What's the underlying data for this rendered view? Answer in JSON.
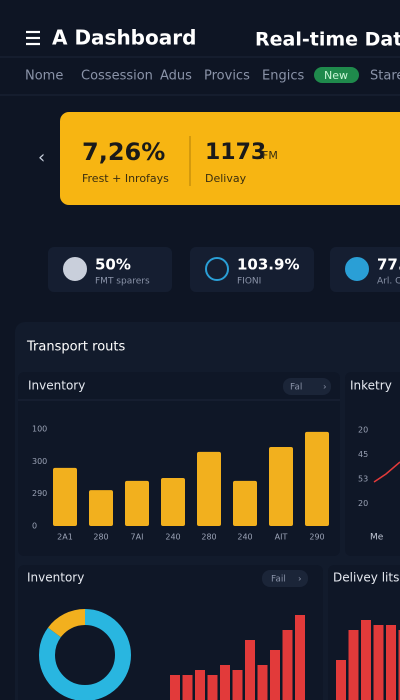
{
  "header": {
    "title": "A Dashboard",
    "right_title": "Real-time Data"
  },
  "nav": {
    "items": [
      "Nome",
      "Cossession",
      "Adus",
      "Provics",
      "Engics",
      "New",
      "Stare"
    ]
  },
  "hero": {
    "metric1": {
      "value": "7,26%",
      "label": "Frest + Inrofays"
    },
    "metric2": {
      "value": "1173",
      "unit": "FM",
      "label": "Delivay"
    }
  },
  "stats": [
    {
      "value": "50%",
      "label": "FMT sparers"
    },
    {
      "value": "103.9%",
      "label": "FIONI"
    },
    {
      "value": "77.",
      "label": "Arl. C"
    }
  ],
  "section": {
    "title": "Transport routs"
  },
  "bar_panel": {
    "title": "Inventory",
    "button": "Fal",
    "y_labels": [
      "100",
      "300",
      "290",
      "0"
    ],
    "ylim": [
      0,
      300
    ],
    "categories": [
      "2A1",
      "280",
      "7AI",
      "240",
      "280",
      "240",
      "AIT",
      "290"
    ],
    "values": [
      178,
      110,
      138,
      147,
      227,
      138,
      242,
      288
    ],
    "color": "#f2b01e"
  },
  "line_panel": {
    "title": "Inketry",
    "y_labels": [
      "20",
      "45",
      "53",
      "20"
    ],
    "x_label": "Me"
  },
  "donut_panel": {
    "title": "Inventory",
    "button": "Fail",
    "values": [
      85,
      15
    ],
    "colors": [
      "#29b6e0",
      "#f2b01e"
    ],
    "bar_values": [
      25,
      25,
      30,
      25,
      35,
      30,
      60,
      35,
      50,
      70,
      85
    ],
    "bar_color": "#e23a3a"
  },
  "delivery_panel": {
    "title": "Delivey lits",
    "values": [
      40,
      70,
      80,
      75,
      75,
      70
    ],
    "color": "#e23a3a"
  }
}
